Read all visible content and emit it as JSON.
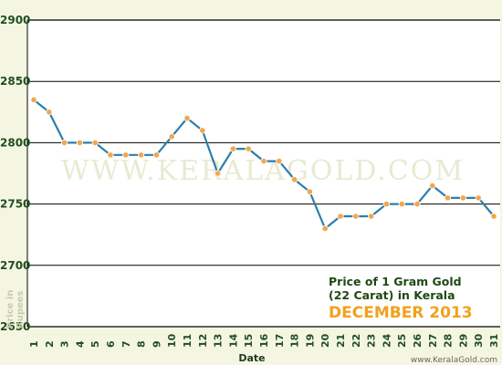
{
  "chart_data": {
    "type": "line",
    "title_lines": [
      "Price of 1 Gram Gold",
      "(22 Carat) in Kerala"
    ],
    "subtitle": "DECEMBER 2013",
    "xlabel": "Date",
    "ylabel_lines": [
      "Price in",
      "Rupees"
    ],
    "watermark": "WWW.KERALAGOLD.COM",
    "credit": "www.KeralaGold.com",
    "ylim": [
      2650,
      2900
    ],
    "yticks": [
      2650,
      2700,
      2750,
      2800,
      2850,
      2900
    ],
    "grid": true,
    "x": [
      "1",
      "2",
      "3",
      "4",
      "5",
      "6",
      "7",
      "8",
      "9",
      "10",
      "11",
      "12",
      "13",
      "14",
      "15",
      "16",
      "17",
      "18",
      "19",
      "20",
      "21",
      "22",
      "23",
      "24",
      "25",
      "26",
      "27",
      "28",
      "29",
      "30",
      "31"
    ],
    "series": [
      {
        "values": [
          2835,
          2825,
          2800,
          2800,
          2800,
          2790,
          2790,
          2790,
          2790,
          2805,
          2820,
          2810,
          2775,
          2795,
          2795,
          2785,
          2785,
          2770,
          2760,
          2730,
          2740,
          2740,
          2740,
          2750,
          2750,
          2750,
          2765,
          2755,
          2755,
          2755,
          2740
        ]
      }
    ],
    "colors": {
      "line": "#2d7fa9",
      "marker_fill": "#f4a64a",
      "marker_stroke": "#ffffff",
      "grid": "#000000",
      "plot_bg": "#ffffff",
      "page_bg": "#f4f6e2"
    }
  }
}
